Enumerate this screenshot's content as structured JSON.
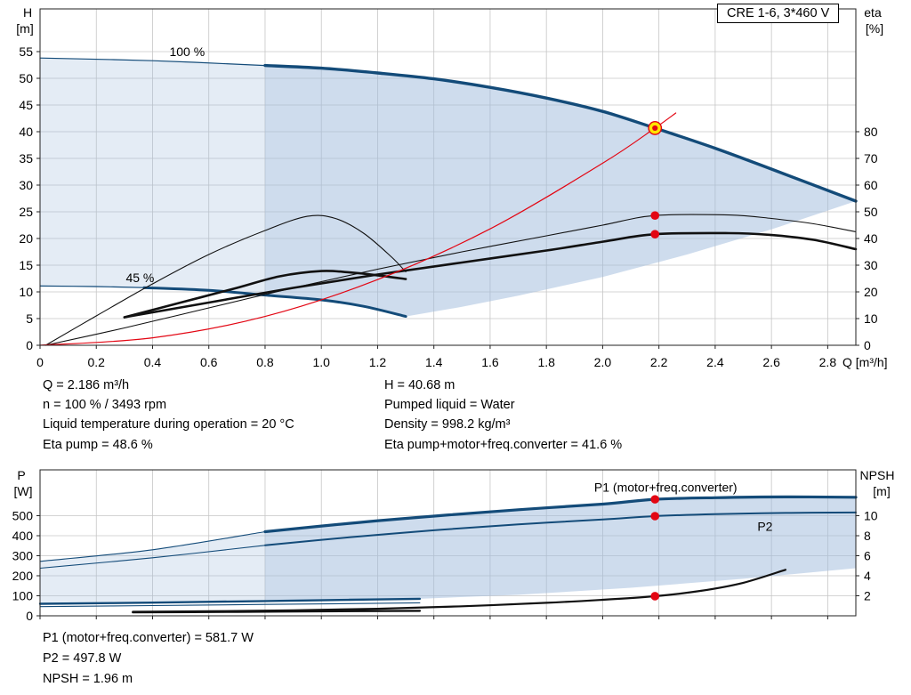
{
  "title_box": "CRE 1-6, 3*460 V",
  "info": {
    "left": [
      "Q = 2.186 m³/h",
      "n = 100 % / 3493 rpm",
      "Liquid temperature during operation = 20 °C",
      "Eta pump = 48.6 %"
    ],
    "right": [
      "H = 40.68 m",
      "Pumped liquid = Water",
      "Density = 998.2 kg/m³",
      "Eta pump+motor+freq.converter = 41.6 %"
    ],
    "bottom": [
      "P1 (motor+freq.converter) = 581.7 W",
      "P2 = 497.8 W",
      "NPSH = 1.96 m"
    ]
  },
  "chart_data": [
    {
      "type": "line",
      "title": "CRE 1-6, 3*460 V",
      "x": {
        "label": "Q [m³/h]",
        "range": [
          0,
          2.9
        ],
        "ticks": [
          0,
          0.2,
          0.4,
          0.6,
          0.8,
          1.0,
          1.2,
          1.4,
          1.6,
          1.8,
          2.0,
          2.2,
          2.4,
          2.6,
          2.8
        ],
        "tick_labels": [
          "0",
          "0.2",
          "0.4",
          "0.6",
          "0.8",
          "1.0",
          "1.2",
          "1.4",
          "1.6",
          "1.8",
          "2.0",
          "2.2",
          "2.4",
          "2.6",
          "2.8"
        ]
      },
      "y_left": {
        "label": "H",
        "unit": "[m]",
        "range": [
          0,
          63
        ],
        "ticks": [
          0,
          5,
          10,
          15,
          20,
          25,
          30,
          35,
          40,
          45,
          50,
          55
        ]
      },
      "y_right": {
        "label": "eta",
        "unit": "[%]",
        "range": [
          0,
          126
        ],
        "ticks": [
          0,
          10,
          20,
          30,
          40,
          50,
          60,
          70,
          80
        ]
      },
      "grid": true,
      "areas": [
        {
          "name": "operating-range-lowflow",
          "color": "rgba(158,185,219,0.28)",
          "points": [
            [
              0,
              53.8
            ],
            [
              0.4,
              53.3
            ],
            [
              0.8,
              52.4
            ],
            [
              0.8,
              9.4
            ],
            [
              0.4,
              10.6
            ],
            [
              0,
              11.1
            ]
          ]
        },
        {
          "name": "operating-range",
          "color": "rgba(158,185,219,0.50)",
          "points": [
            [
              0.8,
              52.4
            ],
            [
              1.0,
              51.9
            ],
            [
              1.2,
              51.0
            ],
            [
              1.4,
              49.9
            ],
            [
              1.6,
              48.3
            ],
            [
              1.8,
              46.3
            ],
            [
              2.0,
              43.8
            ],
            [
              2.186,
              40.68
            ],
            [
              2.4,
              36.9
            ],
            [
              2.6,
              33.0
            ],
            [
              2.9,
              27.0
            ],
            [
              2.6,
              21.7
            ],
            [
              2.3,
              17.0
            ],
            [
              2.0,
              12.8
            ],
            [
              1.7,
              9.3
            ],
            [
              1.5,
              7.2
            ],
            [
              1.3,
              5.4
            ],
            [
              1.15,
              7.3
            ],
            [
              1.0,
              8.5
            ],
            [
              0.8,
              9.4
            ]
          ]
        }
      ],
      "series": [
        {
          "name": "pump-curve-100-lowflow",
          "axis": "left",
          "color": "#134b79",
          "width": 1.2,
          "points": [
            [
              0,
              53.8
            ],
            [
              0.4,
              53.3
            ],
            [
              0.8,
              52.4
            ]
          ]
        },
        {
          "name": "pump-curve-100",
          "axis": "left",
          "color": "#134b79",
          "width": 3.4,
          "points": [
            [
              0.8,
              52.4
            ],
            [
              1.0,
              51.9
            ],
            [
              1.2,
              51.0
            ],
            [
              1.4,
              49.9
            ],
            [
              1.6,
              48.3
            ],
            [
              1.8,
              46.3
            ],
            [
              2.0,
              43.8
            ],
            [
              2.186,
              40.68
            ],
            [
              2.4,
              36.9
            ],
            [
              2.6,
              33.0
            ],
            [
              2.9,
              27.0
            ]
          ]
        },
        {
          "name": "pump-curve-45-lowflow",
          "axis": "left",
          "color": "#134b79",
          "width": 1.2,
          "points": [
            [
              0,
              11.1
            ],
            [
              0.2,
              11.0
            ],
            [
              0.37,
              10.8
            ]
          ]
        },
        {
          "name": "pump-curve-45",
          "axis": "left",
          "color": "#134b79",
          "width": 3.0,
          "points": [
            [
              0.37,
              10.8
            ],
            [
              0.6,
              10.3
            ],
            [
              0.8,
              9.4
            ],
            [
              1.0,
              8.5
            ],
            [
              1.15,
              7.3
            ],
            [
              1.3,
              5.4
            ]
          ]
        },
        {
          "name": "eta-pump-45",
          "axis": "right",
          "color": "#111111",
          "width": 1.1,
          "points": [
            [
              0.02,
              0
            ],
            [
              0.2,
              11
            ],
            [
              0.4,
              23
            ],
            [
              0.6,
              34
            ],
            [
              0.8,
              43
            ],
            [
              0.95,
              48.3
            ],
            [
              1.05,
              47.5
            ],
            [
              1.15,
              42
            ],
            [
              1.25,
              33
            ],
            [
              1.3,
              27.5
            ]
          ]
        },
        {
          "name": "eta-total-45",
          "axis": "right",
          "color": "#111111",
          "width": 2.6,
          "points": [
            [
              0.3,
              10.5
            ],
            [
              0.5,
              16
            ],
            [
              0.7,
              21.5
            ],
            [
              0.85,
              25.8
            ],
            [
              1.0,
              27.8
            ],
            [
              1.1,
              27.3
            ],
            [
              1.2,
              26.2
            ],
            [
              1.3,
              24.8
            ]
          ]
        },
        {
          "name": "eta-pump-100",
          "axis": "right",
          "color": "#111111",
          "width": 1.1,
          "points": [
            [
              0.02,
              0
            ],
            [
              0.3,
              6.5
            ],
            [
              0.6,
              14
            ],
            [
              0.9,
              21.5
            ],
            [
              1.2,
              28.5
            ],
            [
              1.5,
              35
            ],
            [
              1.8,
              41
            ],
            [
              2.0,
              45
            ],
            [
              2.186,
              48.6
            ],
            [
              2.45,
              48.8
            ],
            [
              2.6,
              47.5
            ],
            [
              2.75,
              45.5
            ],
            [
              2.9,
              42.5
            ]
          ]
        },
        {
          "name": "eta-total-100",
          "axis": "right",
          "color": "#111111",
          "width": 2.6,
          "points": [
            [
              0.3,
              10.5
            ],
            [
              0.6,
              16
            ],
            [
              0.9,
              21.5
            ],
            [
              1.2,
              26.5
            ],
            [
              1.5,
              31
            ],
            [
              1.8,
              35.5
            ],
            [
              2.0,
              38.8
            ],
            [
              2.186,
              41.6
            ],
            [
              2.45,
              42
            ],
            [
              2.6,
              41.3
            ],
            [
              2.75,
              39.5
            ],
            [
              2.9,
              36
            ]
          ]
        },
        {
          "name": "system-curve",
          "axis": "left",
          "color": "#e30613",
          "width": 1.2,
          "points": [
            [
              0,
              0
            ],
            [
              0.4,
              1.4
            ],
            [
              0.8,
              5.4
            ],
            [
              1.2,
              12.3
            ],
            [
              1.6,
              21.8
            ],
            [
              2.0,
              34.1
            ],
            [
              2.186,
              40.68
            ],
            [
              2.26,
              43.5
            ]
          ]
        }
      ],
      "annotations": [
        {
          "text": "100 %",
          "x": 0.46,
          "y": 54.2,
          "axis": "left",
          "color": "#000000"
        },
        {
          "text": "45 %",
          "x": 0.305,
          "y": 11.8,
          "axis": "left",
          "color": "#000000"
        }
      ],
      "markers": [
        {
          "name": "duty-point",
          "style": "duty",
          "axis": "left",
          "x": 2.186,
          "y": 40.68
        },
        {
          "name": "eta-pump-point",
          "style": "dot",
          "axis": "right",
          "x": 2.186,
          "y": 48.6
        },
        {
          "name": "eta-total-point",
          "style": "dot",
          "axis": "right",
          "x": 2.186,
          "y": 41.6
        }
      ]
    },
    {
      "type": "line",
      "title": "Power and NPSH",
      "x": {
        "label": "",
        "range": [
          0,
          2.9
        ],
        "ticks": [
          0,
          0.2,
          0.4,
          0.6,
          0.8,
          1.0,
          1.2,
          1.4,
          1.6,
          1.8,
          2.0,
          2.2,
          2.4,
          2.6,
          2.8
        ],
        "tick_labels": []
      },
      "y_left": {
        "label": "P",
        "unit": "[W]",
        "range": [
          0,
          729
        ],
        "ticks": [
          0,
          100,
          200,
          300,
          400,
          500
        ]
      },
      "y_right": {
        "label": "NPSH",
        "unit": "[m]",
        "range": [
          0,
          14.58
        ],
        "ticks": [
          2,
          4,
          6,
          8,
          10
        ]
      },
      "grid": true,
      "areas": [
        {
          "name": "power-range-lowflow",
          "color": "rgba(158,185,219,0.28)",
          "points": [
            [
              0,
              272
            ],
            [
              0.4,
              330
            ],
            [
              0.8,
              420
            ],
            [
              0.8,
              80
            ],
            [
              0.4,
              66
            ],
            [
              0,
              58
            ]
          ]
        },
        {
          "name": "power-range",
          "color": "rgba(158,185,219,0.50)",
          "points": [
            [
              0.8,
              420
            ],
            [
              1.1,
              462
            ],
            [
              1.4,
              498
            ],
            [
              1.7,
              530
            ],
            [
              2.0,
              558
            ],
            [
              2.186,
              581.7
            ],
            [
              2.4,
              590
            ],
            [
              2.65,
              594
            ],
            [
              2.9,
              592
            ],
            [
              2.9,
              238
            ],
            [
              2.5,
              185
            ],
            [
              2.1,
              140
            ],
            [
              1.7,
              105
            ],
            [
              1.35,
              85
            ],
            [
              1.1,
              80
            ],
            [
              0.8,
              80
            ]
          ]
        }
      ],
      "series": [
        {
          "name": "p1-lowflow",
          "axis": "left",
          "color": "#134b79",
          "width": 1.1,
          "points": [
            [
              0,
              272
            ],
            [
              0.4,
              330
            ],
            [
              0.8,
              420
            ]
          ]
        },
        {
          "name": "p2-lowflow",
          "axis": "left",
          "color": "#134b79",
          "width": 1.1,
          "points": [
            [
              0,
              238
            ],
            [
              0.4,
              290
            ],
            [
              0.8,
              352
            ]
          ]
        },
        {
          "name": "p1-curve",
          "axis": "left",
          "color": "#134b79",
          "width": 3.2,
          "points": [
            [
              0.8,
              420
            ],
            [
              1.1,
              462
            ],
            [
              1.4,
              498
            ],
            [
              1.7,
              530
            ],
            [
              2.0,
              558
            ],
            [
              2.186,
              581.7
            ],
            [
              2.4,
              590
            ],
            [
              2.65,
              594
            ],
            [
              2.9,
              592
            ]
          ]
        },
        {
          "name": "p2-curve",
          "axis": "left",
          "color": "#134b79",
          "width": 2.0,
          "points": [
            [
              0.8,
              352
            ],
            [
              1.1,
              392
            ],
            [
              1.4,
              427
            ],
            [
              1.7,
              457
            ],
            [
              2.0,
              481
            ],
            [
              2.186,
              497.8
            ],
            [
              2.4,
              508
            ],
            [
              2.65,
              514
            ],
            [
              2.9,
              516
            ]
          ]
        },
        {
          "name": "p1-45",
          "axis": "left",
          "color": "#134b79",
          "width": 2.4,
          "points": [
            [
              0,
              60
            ],
            [
              0.4,
              66
            ],
            [
              0.8,
              74
            ],
            [
              1.1,
              80
            ],
            [
              1.35,
              85
            ]
          ]
        },
        {
          "name": "p2-45",
          "axis": "left",
          "color": "#134b79",
          "width": 1.1,
          "points": [
            [
              0,
              46
            ],
            [
              0.4,
              51
            ],
            [
              0.8,
              57
            ],
            [
              1.1,
              61
            ],
            [
              1.35,
              65
            ]
          ]
        },
        {
          "name": "npsh-45",
          "axis": "right",
          "color": "#111111",
          "width": 2.4,
          "points": [
            [
              0.33,
              0.35
            ],
            [
              0.7,
              0.4
            ],
            [
              1.0,
              0.45
            ],
            [
              1.35,
              0.5
            ]
          ]
        },
        {
          "name": "npsh-curve",
          "axis": "right",
          "color": "#111111",
          "width": 2.2,
          "points": [
            [
              0.33,
              0.4
            ],
            [
              0.6,
              0.45
            ],
            [
              0.9,
              0.55
            ],
            [
              1.2,
              0.7
            ],
            [
              1.5,
              0.95
            ],
            [
              1.8,
              1.3
            ],
            [
              2.0,
              1.6
            ],
            [
              2.186,
              1.96
            ],
            [
              2.35,
              2.5
            ],
            [
              2.5,
              3.3
            ],
            [
              2.65,
              4.6
            ]
          ]
        }
      ],
      "annotations": [
        {
          "text": "P1 (motor+freq.converter)",
          "x": 1.97,
          "y": 620,
          "axis": "left",
          "color": "#2a6099"
        },
        {
          "text": "P2",
          "x": 2.55,
          "y": 425,
          "axis": "left",
          "color": "#2a6099"
        }
      ],
      "markers": [
        {
          "name": "p1-point",
          "style": "dot",
          "axis": "left",
          "x": 2.186,
          "y": 581.7
        },
        {
          "name": "p2-point",
          "style": "dot",
          "axis": "left",
          "x": 2.186,
          "y": 497.8
        },
        {
          "name": "npsh-point",
          "style": "dot",
          "axis": "right",
          "x": 2.186,
          "y": 1.96
        }
      ]
    }
  ]
}
